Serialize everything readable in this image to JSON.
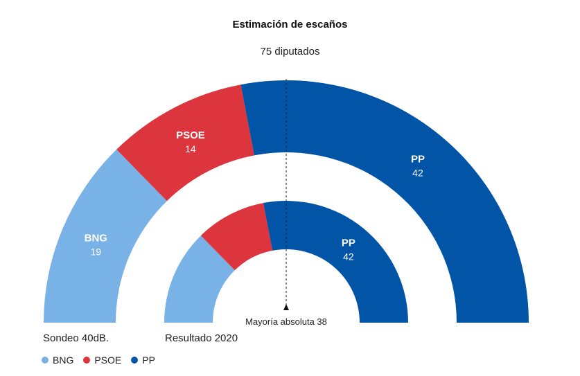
{
  "chart_data": {
    "type": "parliament-donut",
    "title": "Estimación de escaños",
    "subtitle": "75 diputados",
    "total_seats": 75,
    "majority_label": "Mayoría absoluta 38",
    "majority": 38,
    "parties": [
      {
        "name": "BNG",
        "color": "#79b2e6"
      },
      {
        "name": "PSOE",
        "color": "#dc353d"
      },
      {
        "name": "PP",
        "color": "#0254a6"
      }
    ],
    "series": [
      {
        "name": "Sondeo 40dB.",
        "values": [
          19,
          14,
          42
        ],
        "labels_shown": [
          true,
          true,
          true
        ]
      },
      {
        "name": "Resultado 2020",
        "values": [
          19,
          14,
          42
        ],
        "labels_shown": [
          false,
          false,
          true
        ]
      }
    ]
  },
  "legend": [
    {
      "label": "BNG",
      "color": "#79b2e6"
    },
    {
      "label": "PSOE",
      "color": "#dc353d"
    },
    {
      "label": "PP",
      "color": "#0254a6"
    }
  ]
}
